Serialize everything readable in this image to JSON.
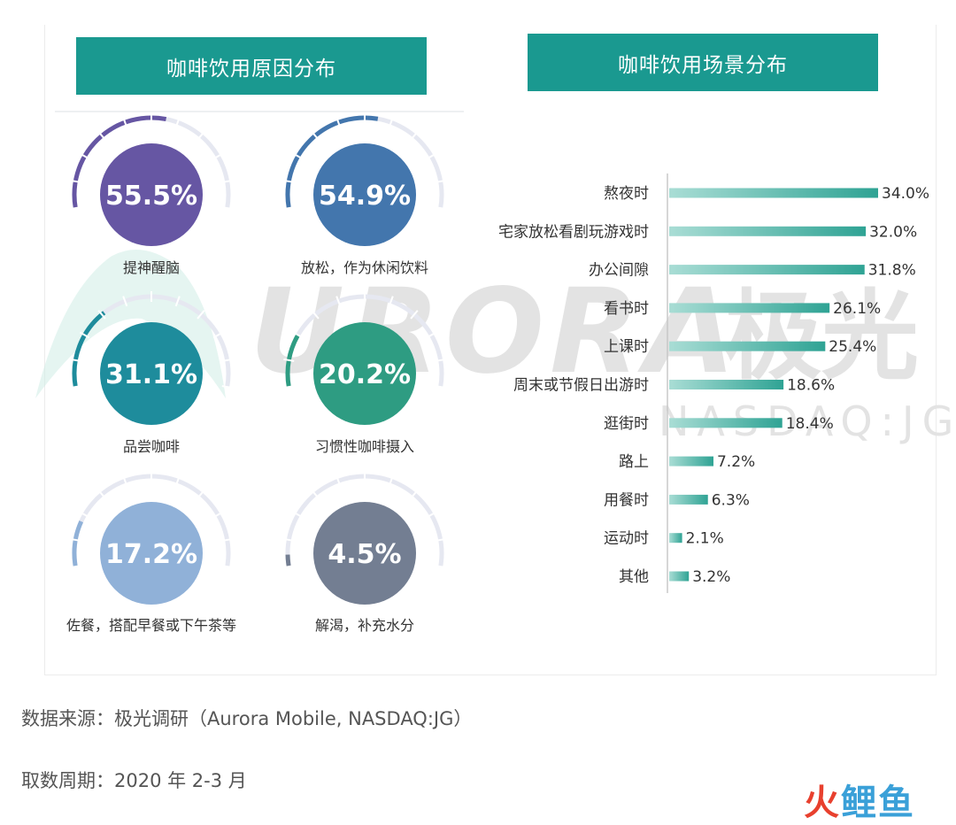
{
  "left_title": "咖啡饮用原因分布",
  "right_title": "咖啡饮用场景分布",
  "watermark": {
    "brand": "URORA",
    "cn": "极光",
    "ticker": "NASDAQ:JG"
  },
  "footer": {
    "source": "数据来源：极光调研（Aurora Mobile, NASDAQ:JG）",
    "period": "取数周期：2020 年 2-3 月"
  },
  "logo": {
    "part1": "火",
    "part2": "鲤",
    "part3": "鱼"
  },
  "colors": {
    "accent": "#1a9990",
    "bar": "#3aa898"
  },
  "chart_data": [
    {
      "type": "gauge",
      "title": "咖啡饮用原因分布",
      "unit": "%",
      "items": [
        {
          "label": "提神醒脑",
          "value": 55.5,
          "display": "55.5%",
          "color": "#6656a3"
        },
        {
          "label": "放松，作为休闲饮料",
          "value": 54.9,
          "display": "54.9%",
          "color": "#4376ad"
        },
        {
          "label": "品尝咖啡",
          "value": 31.1,
          "display": "31.1%",
          "color": "#1e8c9c"
        },
        {
          "label": "习惯性咖啡摄入",
          "value": 20.2,
          "display": "20.2%",
          "color": "#2e9c82"
        },
        {
          "label": "佐餐，搭配早餐或下午茶等",
          "value": 17.2,
          "display": "17.2%",
          "color": "#90b1d8"
        },
        {
          "label": "解渴，补充水分",
          "value": 4.5,
          "display": "4.5%",
          "color": "#737e92"
        }
      ]
    },
    {
      "type": "bar",
      "orientation": "horizontal",
      "title": "咖啡饮用场景分布",
      "unit": "%",
      "categories": [
        "熬夜时",
        "宅家放松看剧玩游戏时",
        "办公间隙",
        "看书时",
        "上课时",
        "周末或节假日出游时",
        "逛街时",
        "路上",
        "用餐时",
        "运动时",
        "其他"
      ],
      "values": [
        34.0,
        32.0,
        31.8,
        26.1,
        25.4,
        18.6,
        18.4,
        7.2,
        6.3,
        2.1,
        3.2
      ],
      "labels": [
        "34.0%",
        "32.0%",
        "31.8%",
        "26.1%",
        "25.4%",
        "18.6%",
        "18.4%",
        "7.2%",
        "6.3%",
        "2.1%",
        "3.2%"
      ],
      "xlim": [
        0,
        34
      ]
    }
  ]
}
